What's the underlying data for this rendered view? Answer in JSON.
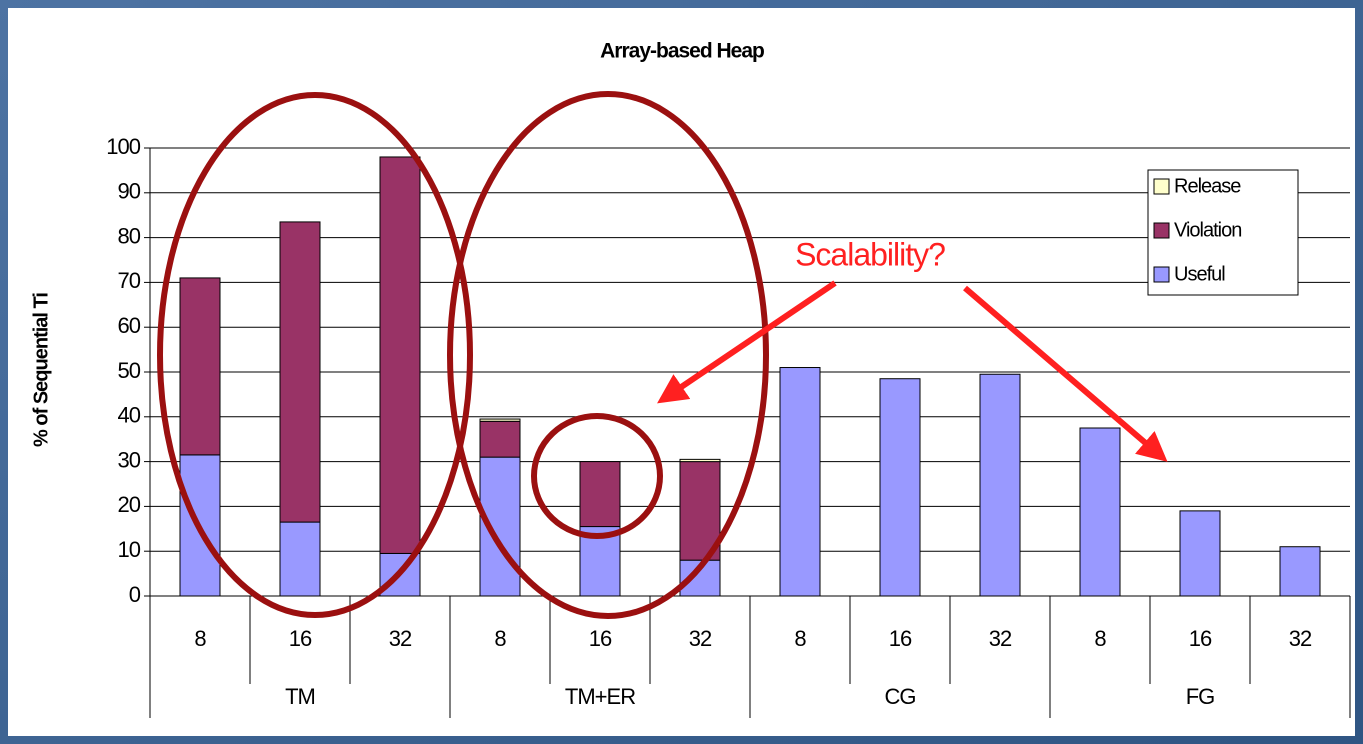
{
  "chart_data": {
    "type": "stacked_bar",
    "title": "Array-based Heap",
    "y_label": "% of Sequential Ti",
    "annotation": "Scalability?",
    "categories": [
      "8",
      "16",
      "32",
      "8",
      "16",
      "32",
      "8",
      "16",
      "32",
      "8",
      "16",
      "32"
    ],
    "groups": [
      "TM",
      "TM+ER",
      "CG",
      "FG"
    ],
    "series": [
      {
        "name": "Useful",
        "color": "#9999ff",
        "values": [
          31.5,
          16.5,
          9.5,
          31,
          15.5,
          8,
          51,
          48.5,
          49.5,
          37.5,
          19,
          11
        ]
      },
      {
        "name": "Violation",
        "color": "#993366",
        "values": [
          39.5,
          67,
          88.5,
          8,
          14.5,
          22,
          0,
          0,
          0,
          0,
          0,
          0
        ]
      },
      {
        "name": "Release",
        "color": "#ffffcc",
        "values": [
          0,
          0,
          0,
          0.5,
          0,
          0.5,
          0,
          0,
          0,
          0,
          0,
          0
        ]
      }
    ],
    "ylim": [
      0,
      100
    ],
    "yticks": [
      0,
      10,
      20,
      30,
      40,
      50,
      60,
      70,
      80,
      90,
      100
    ],
    "grid": true,
    "legend": "upper right"
  }
}
